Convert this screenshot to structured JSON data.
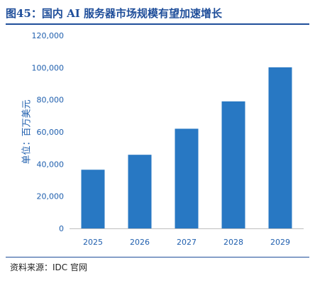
{
  "figure": {
    "title": "图45：国内 AI 服务器市场规模有望加速增长",
    "source": "资料来源：IDC 官网"
  },
  "colors": {
    "accent": "#1f4e9a",
    "bar": "#2878c3",
    "axis_text": "#1f5fae"
  },
  "chart_data": {
    "type": "bar",
    "categories": [
      "2025",
      "2026",
      "2027",
      "2028",
      "2029"
    ],
    "values": [
      36500,
      45800,
      62000,
      79000,
      100200
    ],
    "title": "",
    "xlabel": "",
    "ylabel": "单位：百万美元",
    "ylim": [
      0,
      120000
    ],
    "yticks": [
      0,
      20000,
      40000,
      60000,
      80000,
      100000,
      120000
    ],
    "ytick_labels": [
      "0",
      "20,000",
      "40,000",
      "60,000",
      "80,000",
      "100,000",
      "120,000"
    ],
    "grid": false,
    "legend": "none"
  }
}
